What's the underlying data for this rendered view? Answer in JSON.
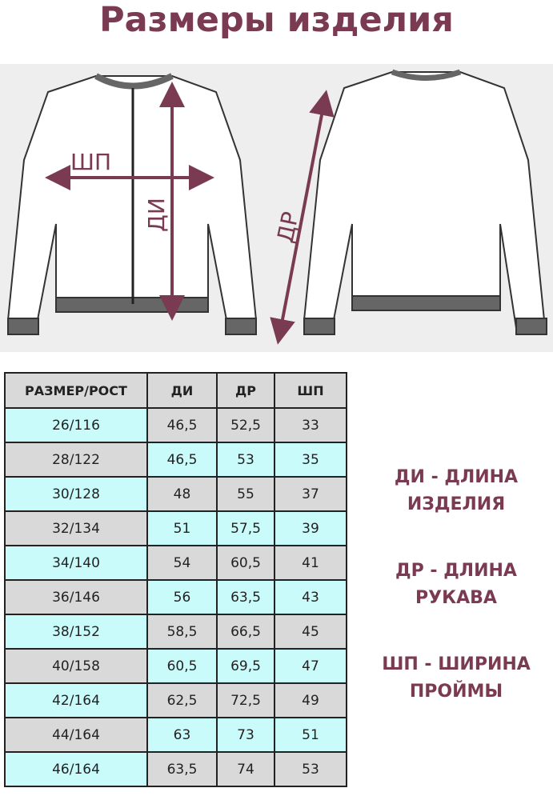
{
  "title": "Размеры изделия",
  "diagram_labels": {
    "shp": "ШП",
    "di": "ДИ",
    "dr": "ДР"
  },
  "table": {
    "headers": [
      "РАЗМЕР/РОСТ",
      "ДИ",
      "ДР",
      "ШП"
    ],
    "rows": [
      [
        "26/116",
        "46,5",
        "52,5",
        "33"
      ],
      [
        "28/122",
        "46,5",
        "53",
        "35"
      ],
      [
        "30/128",
        "48",
        "55",
        "37"
      ],
      [
        "32/134",
        "51",
        "57,5",
        "39"
      ],
      [
        "34/140",
        "54",
        "60,5",
        "41"
      ],
      [
        "36/146",
        "56",
        "63,5",
        "43"
      ],
      [
        "38/152",
        "58,5",
        "66,5",
        "45"
      ],
      [
        "40/158",
        "60,5",
        "69,5",
        "47"
      ],
      [
        "42/164",
        "62,5",
        "72,5",
        "49"
      ],
      [
        "44/164",
        "63",
        "73",
        "51"
      ],
      [
        "46/164",
        "63,5",
        "74",
        "53"
      ]
    ]
  },
  "legend": [
    {
      "line1": "ДИ - ДЛИНА",
      "line2": "ИЗДЕЛИЯ"
    },
    {
      "line1": "ДР - ДЛИНА",
      "line2": "РУКАВА"
    },
    {
      "line1": "ШП - ШИРИНА",
      "line2": "ПРОЙМЫ"
    }
  ],
  "colors": {
    "accent": "#7a3b52",
    "cyan": "#c9fbfb",
    "gray": "#d9d9d9"
  }
}
